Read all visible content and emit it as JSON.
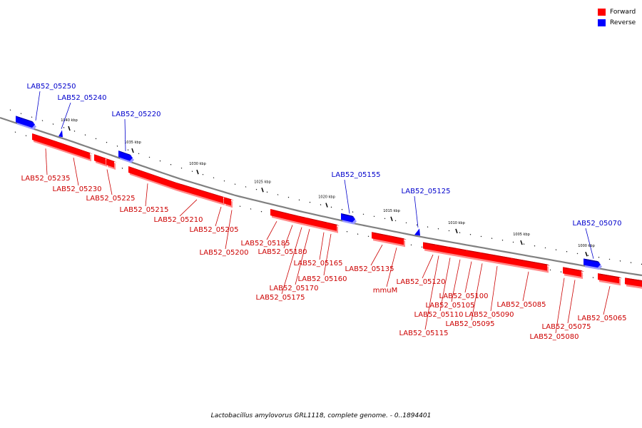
{
  "colors": {
    "forward": "#ff0000",
    "forward_dark": "#c40000",
    "forward_shadow": "#ff8a8a",
    "reverse": "#0000ff",
    "reverse_dark": "#00009c",
    "reverse_shadow": "#9a9aff",
    "backbone": "#808080",
    "label_forward": "#cc0000",
    "label_reverse": "#0000cc",
    "leader": "#cc0000"
  },
  "legend": {
    "forward_label": "Forward",
    "reverse_label": "Reverse"
  },
  "footer_caption": "Lactobacillus amylovorus GRL1118, complete genome. - 0..1894401",
  "scale_ticks": [
    "1040 kbp",
    "1035 kbp",
    "1030 kbp",
    "1025 kbp",
    "1020 kbp",
    "1015 kbp",
    "1010 kbp",
    "1005 kbp",
    "1000 kbp"
  ],
  "reverse_genes": [
    {
      "label": "LAB52_05250",
      "shape": "arrow"
    },
    {
      "label": "LAB52_05240",
      "shape": "sliver"
    },
    {
      "label": "LAB52_05220",
      "shape": "arrow"
    },
    {
      "label": "LAB52_05155",
      "shape": "arrow"
    },
    {
      "label": "LAB52_05125",
      "shape": "sliver"
    },
    {
      "label": "LAB52_05070",
      "shape": "arrow"
    }
  ],
  "forward_genes": [
    "LAB52_05235",
    "LAB52_05230",
    "LAB52_05225",
    "LAB52_05215",
    "LAB52_05210",
    "LAB52_05205",
    "LAB52_05200",
    "LAB52_05185",
    "LAB52_05180",
    "LAB52_05175",
    "LAB52_05170",
    "LAB52_05165",
    "LAB52_05160",
    "LAB52_05135",
    "mmuM",
    "LAB52_05120",
    "LAB52_05115",
    "LAB52_05110",
    "LAB52_05105",
    "LAB52_05100",
    "LAB52_05095",
    "LAB52_05090",
    "LAB52_05085",
    "LAB52_05080",
    "LAB52_05075",
    "LAB52_05065"
  ]
}
